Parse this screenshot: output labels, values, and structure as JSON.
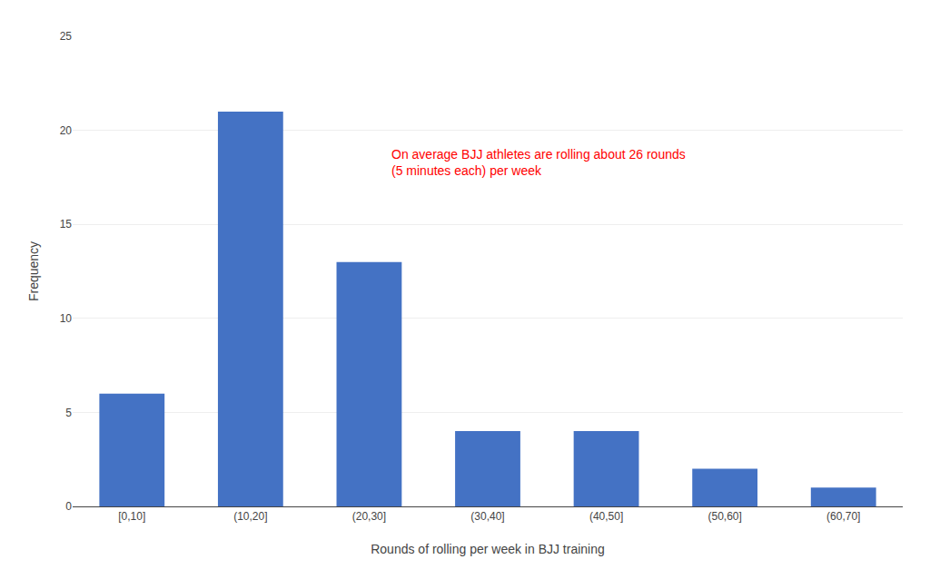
{
  "chart_data": {
    "type": "bar",
    "categories": [
      "[0,10]",
      "(10,20]",
      "(20,30]",
      "(30,40]",
      "(40,50]",
      "(50,60]",
      "(60,70]"
    ],
    "values": [
      6,
      21,
      13,
      4,
      4,
      2,
      1
    ],
    "color": "#4472C4",
    "xlabel": "Rounds of rolling per week in BJJ training",
    "ylabel": "Frequency",
    "ylim": [
      0,
      25
    ],
    "yticks": [
      0,
      5,
      10,
      15,
      20,
      25
    ],
    "grid": true,
    "annotations": [
      {
        "text": "On average BJJ athletes are rolling about 26 rounds\n(5 minutes each) per week",
        "color": "#FF0000"
      }
    ]
  }
}
